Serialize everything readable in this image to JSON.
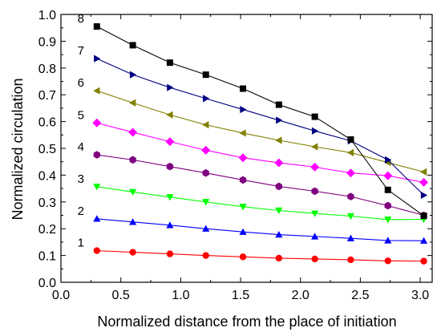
{
  "chart_data": {
    "type": "line",
    "xlabel": "Normalized distance from the place of initiation",
    "ylabel": "Normalized circulation",
    "xlim": [
      0.0,
      3.1
    ],
    "ylim": [
      0.0,
      1.0
    ],
    "x_ticks": [
      "0.0",
      "0.5",
      "1.0",
      "1.5",
      "2.0",
      "2.5",
      "3.0"
    ],
    "y_ticks": [
      "0.0",
      "0.1",
      "0.2",
      "0.3",
      "0.4",
      "0.5",
      "0.6",
      "0.7",
      "0.8",
      "0.9",
      "1.0"
    ],
    "grid": false,
    "x": [
      0.3,
      0.6,
      0.91,
      1.21,
      1.52,
      1.82,
      2.12,
      2.42,
      2.73,
      3.03
    ],
    "series": [
      {
        "name": "1",
        "color": "#ff0000",
        "marker": "circle",
        "values": [
          0.118,
          0.112,
          0.106,
          0.1,
          0.095,
          0.09,
          0.087,
          0.084,
          0.08,
          0.079
        ]
      },
      {
        "name": "2",
        "color": "#0000ff",
        "marker": "triangle-up",
        "values": [
          0.237,
          0.225,
          0.213,
          0.2,
          0.188,
          0.178,
          0.171,
          0.164,
          0.156,
          0.155
        ]
      },
      {
        "name": "3",
        "color": "#00ff00",
        "marker": "triangle-down",
        "values": [
          0.357,
          0.337,
          0.318,
          0.3,
          0.282,
          0.268,
          0.257,
          0.247,
          0.234,
          0.235
        ]
      },
      {
        "name": "4",
        "color": "#800080",
        "marker": "hexagon",
        "values": [
          0.476,
          0.457,
          0.432,
          0.408,
          0.382,
          0.358,
          0.34,
          0.32,
          0.286,
          0.25
        ]
      },
      {
        "name": "5",
        "color": "#ff00ff",
        "marker": "diamond",
        "values": [
          0.595,
          0.56,
          0.525,
          0.493,
          0.465,
          0.446,
          0.43,
          0.408,
          0.398,
          0.373
        ]
      },
      {
        "name": "6",
        "color": "#808000",
        "marker": "triangle-left",
        "values": [
          0.715,
          0.67,
          0.625,
          0.588,
          0.557,
          0.53,
          0.506,
          0.484,
          0.447,
          0.412
        ]
      },
      {
        "name": "7",
        "color": "#000080",
        "marker": "triangle-right",
        "values": [
          0.835,
          0.775,
          0.727,
          0.686,
          0.645,
          0.605,
          0.565,
          0.528,
          0.457,
          0.325
        ]
      },
      {
        "name": "8",
        "color": "#000000",
        "marker": "square",
        "values": [
          0.955,
          0.885,
          0.82,
          0.775,
          0.723,
          0.663,
          0.618,
          0.533,
          0.345,
          0.248
        ]
      }
    ]
  }
}
